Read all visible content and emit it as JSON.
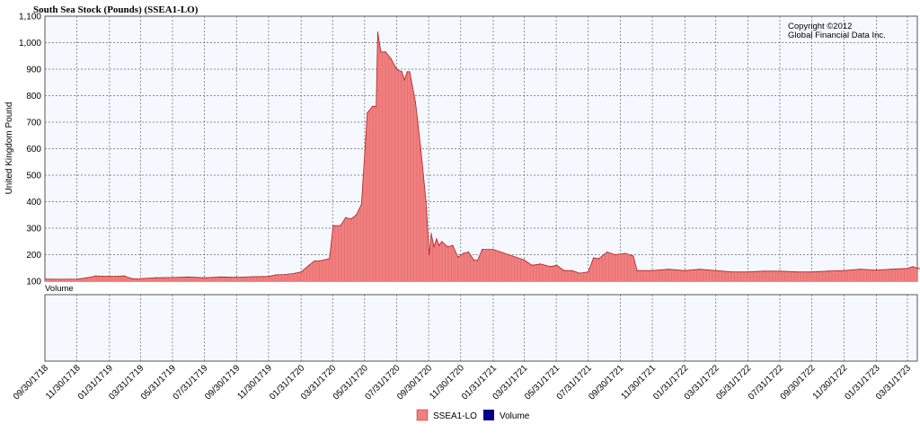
{
  "chart_data": {
    "type": "area",
    "title": "South Sea Stock (Pounds) (SSEA1-LO)",
    "ylabel": "United Kingdom Pound",
    "volume_label": "Volume",
    "copyright": [
      "Copyright ©2012",
      "Global Financial Data Inc."
    ],
    "ylim": [
      100,
      1100
    ],
    "yticks": [
      100,
      200,
      300,
      400,
      500,
      600,
      700,
      800,
      900,
      "1,000",
      "1,100"
    ],
    "grid": true,
    "legend_position": "bottom-center",
    "x_tick_labels": [
      "09/30/1718",
      "11/30/1718",
      "01/31/1719",
      "03/31/1719",
      "05/31/1719",
      "07/31/1719",
      "09/30/1719",
      "11/30/1719",
      "01/31/1720",
      "03/31/1720",
      "05/31/1720",
      "07/31/1720",
      "09/30/1720",
      "11/30/1720",
      "01/31/1721",
      "03/31/1721",
      "05/31/1721",
      "07/31/1721",
      "09/30/1721",
      "11/30/1721",
      "01/31/1722",
      "03/31/1722",
      "05/31/1722",
      "07/31/1722",
      "09/30/1722",
      "11/30/1722",
      "01/31/1723",
      "03/31/1723"
    ],
    "series": [
      {
        "name": "SSEA1-LO",
        "color": "#f08080",
        "line_color": "#b22222",
        "points": [
          [
            "1718-09-30",
            108
          ],
          [
            "1718-10-31",
            107
          ],
          [
            "1718-11-30",
            108
          ],
          [
            "1718-12-20",
            113
          ],
          [
            "1719-01-05",
            120
          ],
          [
            "1719-01-31",
            118
          ],
          [
            "1719-02-28",
            120
          ],
          [
            "1719-03-15",
            109
          ],
          [
            "1719-03-31",
            110
          ],
          [
            "1719-04-30",
            113
          ],
          [
            "1719-05-31",
            114
          ],
          [
            "1719-06-30",
            116
          ],
          [
            "1719-07-31",
            113
          ],
          [
            "1719-08-31",
            116
          ],
          [
            "1719-09-30",
            115
          ],
          [
            "1719-10-31",
            117
          ],
          [
            "1719-11-30",
            118
          ],
          [
            "1719-12-15",
            124
          ],
          [
            "1720-01-01",
            125
          ],
          [
            "1720-01-20",
            130
          ],
          [
            "1720-01-31",
            135
          ],
          [
            "1720-02-15",
            160
          ],
          [
            "1720-02-25",
            176
          ],
          [
            "1720-03-10",
            178
          ],
          [
            "1720-03-25",
            185
          ],
          [
            "1720-04-01",
            310
          ],
          [
            "1720-04-15",
            310
          ],
          [
            "1720-04-25",
            340
          ],
          [
            "1720-05-05",
            335
          ],
          [
            "1720-05-15",
            350
          ],
          [
            "1720-05-25",
            390
          ],
          [
            "1720-06-05",
            735
          ],
          [
            "1720-06-15",
            760
          ],
          [
            "1720-06-22",
            760
          ],
          [
            "1720-06-25",
            1040
          ],
          [
            "1720-07-01",
            965
          ],
          [
            "1720-07-10",
            965
          ],
          [
            "1720-07-20",
            940
          ],
          [
            "1720-07-31",
            900
          ],
          [
            "1720-08-10",
            890
          ],
          [
            "1720-08-15",
            860
          ],
          [
            "1720-08-20",
            890
          ],
          [
            "1720-08-25",
            890
          ],
          [
            "1720-09-05",
            775
          ],
          [
            "1720-09-15",
            600
          ],
          [
            "1720-09-25",
            400
          ],
          [
            "1720-10-01",
            200
          ],
          [
            "1720-10-05",
            280
          ],
          [
            "1720-10-10",
            230
          ],
          [
            "1720-10-15",
            260
          ],
          [
            "1720-10-20",
            235
          ],
          [
            "1720-10-25",
            250
          ],
          [
            "1720-11-05",
            230
          ],
          [
            "1720-11-15",
            235
          ],
          [
            "1720-11-25",
            190
          ],
          [
            "1720-12-05",
            205
          ],
          [
            "1720-12-15",
            210
          ],
          [
            "1720-12-25",
            180
          ],
          [
            "1721-01-01",
            178
          ],
          [
            "1721-01-10",
            220
          ],
          [
            "1721-01-31",
            220
          ],
          [
            "1721-03-31",
            180
          ],
          [
            "1721-04-15",
            160
          ],
          [
            "1721-05-01",
            165
          ],
          [
            "1721-05-20",
            155
          ],
          [
            "1721-06-01",
            160
          ],
          [
            "1721-06-15",
            140
          ],
          [
            "1721-06-30",
            140
          ],
          [
            "1721-07-15",
            130
          ],
          [
            "1721-07-31",
            135
          ],
          [
            "1721-08-10",
            188
          ],
          [
            "1721-08-20",
            185
          ],
          [
            "1721-09-05",
            210
          ],
          [
            "1721-09-20",
            200
          ],
          [
            "1721-10-10",
            205
          ],
          [
            "1721-10-25",
            195
          ],
          [
            "1721-11-01",
            140
          ],
          [
            "1721-11-30",
            140
          ],
          [
            "1721-12-31",
            145
          ],
          [
            "1722-01-31",
            140
          ],
          [
            "1722-02-28",
            145
          ],
          [
            "1722-03-31",
            140
          ],
          [
            "1722-04-30",
            135
          ],
          [
            "1722-05-31",
            135
          ],
          [
            "1722-06-30",
            138
          ],
          [
            "1722-07-31",
            138
          ],
          [
            "1722-08-31",
            135
          ],
          [
            "1722-09-30",
            135
          ],
          [
            "1722-10-31",
            138
          ],
          [
            "1722-11-30",
            140
          ],
          [
            "1722-12-31",
            145
          ],
          [
            "1723-01-31",
            142
          ],
          [
            "1723-02-28",
            145
          ],
          [
            "1723-03-31",
            148
          ],
          [
            "1723-04-10",
            155
          ],
          [
            "1723-04-20",
            148
          ],
          [
            "1723-05-20",
            148
          ]
        ]
      },
      {
        "name": "Volume",
        "color": "#00008b",
        "points": []
      }
    ]
  }
}
